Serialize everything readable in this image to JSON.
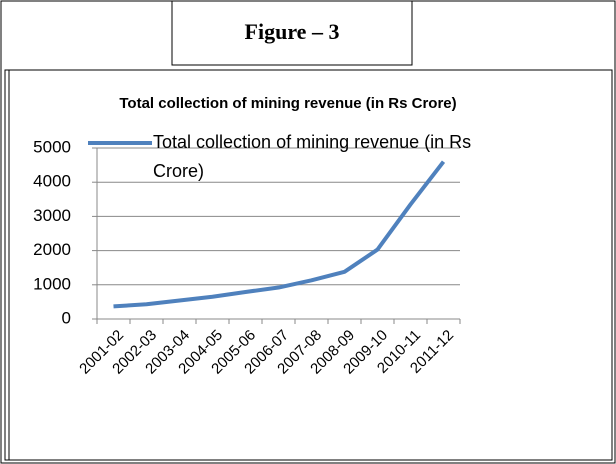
{
  "figure_label": "Figure – 3",
  "chart_data": {
    "type": "line",
    "title": "Total collection of mining revenue (in Rs Crore)",
    "categories": [
      "2001-02",
      "2002-03",
      "2003-04",
      "2004-05",
      "2005-06",
      "2006-07",
      "2007-08",
      "2008-09",
      "2009-10",
      "2010-11",
      "2011-12"
    ],
    "series": [
      {
        "name": "Total collection of mining revenue (in Rs Crore)",
        "color": "#4f81bd",
        "values": [
          370,
          430,
          540,
          650,
          790,
          920,
          1130,
          1380,
          2030,
          3350,
          4600
        ]
      }
    ],
    "ylim": [
      0,
      5000
    ],
    "yticks": [
      0,
      1000,
      2000,
      3000,
      4000,
      5000
    ],
    "grid": true,
    "legend": "top"
  }
}
